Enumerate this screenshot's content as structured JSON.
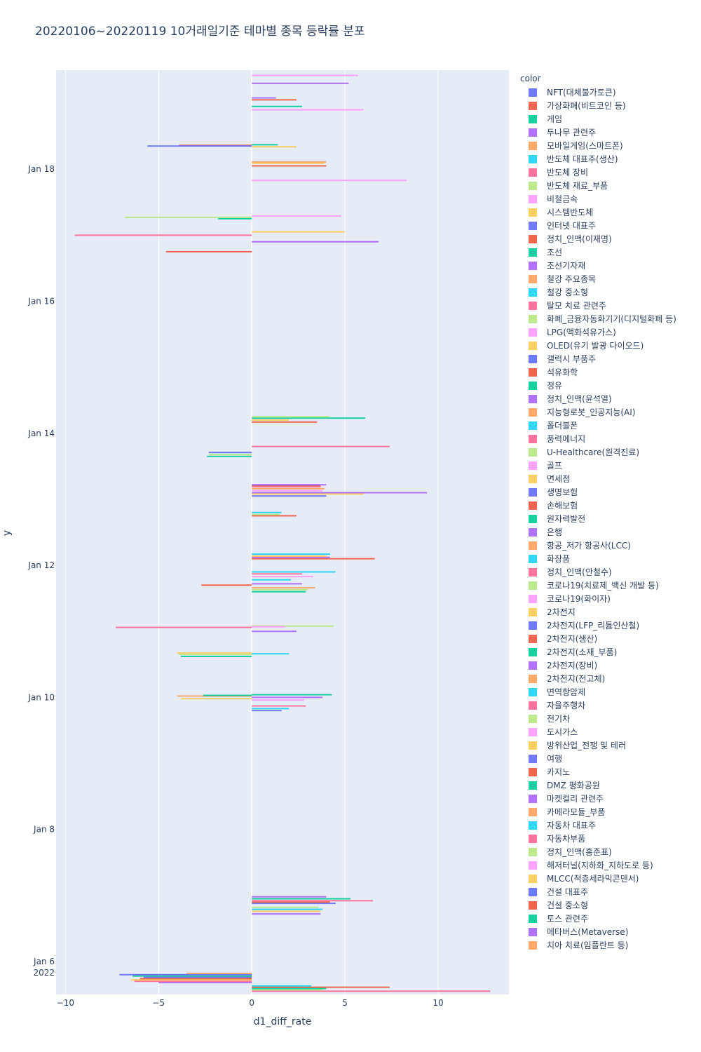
{
  "chart_data": {
    "type": "bar",
    "orientation": "horizontal",
    "title": "20220106~20220119 10거래일기준 테마별 종목 등락률 분포",
    "xlabel": "d1_diff_rate",
    "ylabel": "y",
    "xlim": [
      -10.5,
      13.8
    ],
    "x_ticks": [
      -10,
      -5,
      0,
      5,
      10
    ],
    "x_tick_labels": [
      "−10",
      "−5",
      "0",
      "5",
      "10"
    ],
    "y_ticks": [
      {
        "day": 6,
        "label": "Jan 6",
        "sublabel": "2022"
      },
      {
        "day": 8,
        "label": "Jan 8"
      },
      {
        "day": 10,
        "label": "Jan 10"
      },
      {
        "day": 12,
        "label": "Jan 12"
      },
      {
        "day": 14,
        "label": "Jan 14"
      },
      {
        "day": 16,
        "label": "Jan 16"
      },
      {
        "day": 18,
        "label": "Jan 18"
      }
    ],
    "ylim_days": [
      5.5,
      19.5
    ],
    "legend_title": "color",
    "themes": [
      {
        "name": "NFT(대체불가토큰)",
        "color": "#636efa"
      },
      {
        "name": "가상화폐(비트코인 등)",
        "color": "#EF553B"
      },
      {
        "name": "게임",
        "color": "#00cc96"
      },
      {
        "name": "두나무 관련주",
        "color": "#ab63fa"
      },
      {
        "name": "모바일게임(스마트폰)",
        "color": "#FFA15A"
      },
      {
        "name": "반도체 대표주(생산)",
        "color": "#19d3f3"
      },
      {
        "name": "반도체 장비",
        "color": "#FF6692"
      },
      {
        "name": "반도체 재료_부품",
        "color": "#B6E880"
      },
      {
        "name": "비철금속",
        "color": "#FF97FF"
      },
      {
        "name": "시스템반도체",
        "color": "#FECB52"
      },
      {
        "name": "인터넷 대표주",
        "color": "#636efa"
      },
      {
        "name": "정치_인맥(이재명)",
        "color": "#EF553B"
      },
      {
        "name": "조선",
        "color": "#00cc96"
      },
      {
        "name": "조선기자재",
        "color": "#ab63fa"
      },
      {
        "name": "철강 주요종목",
        "color": "#FFA15A"
      },
      {
        "name": "철강 중소형",
        "color": "#19d3f3"
      },
      {
        "name": "탈모 치료 관련주",
        "color": "#FF6692"
      },
      {
        "name": "화폐_금융자동화기기(디지털화폐 등)",
        "color": "#B6E880"
      },
      {
        "name": "LPG(액화석유가스)",
        "color": "#FF97FF"
      },
      {
        "name": "OLED(유기 발광 다이오드)",
        "color": "#FECB52"
      },
      {
        "name": "갤럭시 부품주",
        "color": "#636efa"
      },
      {
        "name": "석유화학",
        "color": "#EF553B"
      },
      {
        "name": "정유",
        "color": "#00cc96"
      },
      {
        "name": "정치_인맥(윤석열)",
        "color": "#ab63fa"
      },
      {
        "name": "지능형로봇_인공지능(AI)",
        "color": "#FFA15A"
      },
      {
        "name": "폴더블폰",
        "color": "#19d3f3"
      },
      {
        "name": "풍력에너지",
        "color": "#FF6692"
      },
      {
        "name": "U-Healthcare(원격진료)",
        "color": "#B6E880"
      },
      {
        "name": "골프",
        "color": "#FF97FF"
      },
      {
        "name": "면세점",
        "color": "#FECB52"
      },
      {
        "name": "생명보험",
        "color": "#636efa"
      },
      {
        "name": "손해보험",
        "color": "#EF553B"
      },
      {
        "name": "원자력발전",
        "color": "#00cc96"
      },
      {
        "name": "은행",
        "color": "#ab63fa"
      },
      {
        "name": "항공_저가 항공사(LCC)",
        "color": "#FFA15A"
      },
      {
        "name": "화장품",
        "color": "#19d3f3"
      },
      {
        "name": "정치_인맥(안철수)",
        "color": "#FF6692"
      },
      {
        "name": "코로나19(치료제_백신 개발 등)",
        "color": "#B6E880"
      },
      {
        "name": "코로나19(화이자)",
        "color": "#FF97FF"
      },
      {
        "name": "2차전지",
        "color": "#FECB52"
      },
      {
        "name": "2차전지(LFP_리튬인산철)",
        "color": "#636efa"
      },
      {
        "name": "2차전지(생산)",
        "color": "#EF553B"
      },
      {
        "name": "2차전지(소재_부품)",
        "color": "#00cc96"
      },
      {
        "name": "2차전지(장비)",
        "color": "#ab63fa"
      },
      {
        "name": "2차전지(전고체)",
        "color": "#FFA15A"
      },
      {
        "name": "면역항암제",
        "color": "#19d3f3"
      },
      {
        "name": "자율주행차",
        "color": "#FF6692"
      },
      {
        "name": "전기차",
        "color": "#B6E880"
      },
      {
        "name": "도시가스",
        "color": "#FF97FF"
      },
      {
        "name": "방위산업_전쟁 및 테러",
        "color": "#FECB52"
      },
      {
        "name": "여행",
        "color": "#636efa"
      },
      {
        "name": "카지노",
        "color": "#EF553B"
      },
      {
        "name": "DMZ 평화공원",
        "color": "#00cc96"
      },
      {
        "name": "마켓컬리 관련주",
        "color": "#ab63fa"
      },
      {
        "name": "카메라모듈_부품",
        "color": "#FFA15A"
      },
      {
        "name": "자동차 대표주",
        "color": "#19d3f3"
      },
      {
        "name": "자동차부품",
        "color": "#FF6692"
      },
      {
        "name": "정치_인맥(홍준표)",
        "color": "#B6E880"
      },
      {
        "name": "해저터널(지하화_지하도로 등)",
        "color": "#FF97FF"
      },
      {
        "name": "MLCC(적층세라믹콘덴서)",
        "color": "#FECB52"
      },
      {
        "name": "건설 대표주",
        "color": "#636efa"
      },
      {
        "name": "건설 중소형",
        "color": "#EF553B"
      },
      {
        "name": "토스 관련주",
        "color": "#00cc96"
      },
      {
        "name": "메타버스(Metaverse)",
        "color": "#ab63fa"
      },
      {
        "name": "치아 치료(임플란트 등)",
        "color": "#FFA15A"
      }
    ],
    "bars": [
      {
        "day": 5.68,
        "value": -5.0,
        "color": "#ab63fa"
      },
      {
        "day": 5.7,
        "value": -6.3,
        "color": "#FF6692"
      },
      {
        "day": 5.72,
        "value": -6.5,
        "color": "#FECB52"
      },
      {
        "day": 5.74,
        "value": -6.0,
        "color": "#EF553B"
      },
      {
        "day": 5.76,
        "value": -5.8,
        "color": "#636efa"
      },
      {
        "day": 5.78,
        "value": -6.4,
        "color": "#00cc96"
      },
      {
        "day": 5.8,
        "value": -7.1,
        "color": "#636efa"
      },
      {
        "day": 5.82,
        "value": -3.5,
        "color": "#FFA15A"
      },
      {
        "day": 5.62,
        "value": 2.5,
        "color": "#FF97FF"
      },
      {
        "day": 5.55,
        "value": 12.8,
        "color": "#FF6692"
      },
      {
        "day": 5.57,
        "value": 3.8,
        "color": "#B6E880"
      },
      {
        "day": 5.59,
        "value": 4.0,
        "color": "#00cc96"
      },
      {
        "day": 5.61,
        "value": 7.4,
        "color": "#EF553B"
      },
      {
        "day": 5.63,
        "value": 3.2,
        "color": "#19d3f3"
      },
      {
        "day": 6.72,
        "value": 3.7,
        "color": "#ab63fa"
      },
      {
        "day": 6.76,
        "value": 3.7,
        "color": "#FECB52"
      },
      {
        "day": 6.79,
        "value": 3.8,
        "color": "#19d3f3"
      },
      {
        "day": 6.82,
        "value": 3.6,
        "color": "#B6E880"
      },
      {
        "day": 6.88,
        "value": 4.5,
        "color": "#636efa"
      },
      {
        "day": 6.9,
        "value": 4.2,
        "color": "#EF553B"
      },
      {
        "day": 6.92,
        "value": 6.5,
        "color": "#FF6692"
      },
      {
        "day": 6.95,
        "value": 5.3,
        "color": "#00cc96"
      },
      {
        "day": 6.98,
        "value": 4.0,
        "color": "#ab63fa"
      },
      {
        "day": 9.8,
        "value": 1.6,
        "color": "#636efa"
      },
      {
        "day": 9.83,
        "value": 2.0,
        "color": "#19d3f3"
      },
      {
        "day": 9.87,
        "value": 2.9,
        "color": "#FF6692"
      },
      {
        "day": 9.96,
        "value": 2.8,
        "color": "#FF97FF"
      },
      {
        "day": 9.98,
        "value": -3.8,
        "color": "#FECB52"
      },
      {
        "day": 10.0,
        "value": 3.8,
        "color": "#ab63fa"
      },
      {
        "day": 10.02,
        "value": -4.0,
        "color": "#FFA15A"
      },
      {
        "day": 10.04,
        "value": 4.3,
        "color": "#00cc96"
      },
      {
        "day": 10.03,
        "value": -2.6,
        "color": "#00cc96"
      },
      {
        "day": 10.62,
        "value": -3.8,
        "color": "#00cc96"
      },
      {
        "day": 10.65,
        "value": -3.9,
        "color": "#B6E880"
      },
      {
        "day": 10.67,
        "value": -4.0,
        "color": "#FECB52"
      },
      {
        "day": 10.66,
        "value": 2.0,
        "color": "#19d3f3"
      },
      {
        "day": 11.0,
        "value": 2.4,
        "color": "#ab63fa"
      },
      {
        "day": 11.06,
        "value": -7.3,
        "color": "#FF6692"
      },
      {
        "day": 11.08,
        "value": 4.4,
        "color": "#B6E880"
      },
      {
        "day": 11.07,
        "value": 1.8,
        "color": "#FF97FF"
      },
      {
        "day": 11.6,
        "value": 2.9,
        "color": "#00cc96"
      },
      {
        "day": 11.63,
        "value": 3.0,
        "color": "#B6E880"
      },
      {
        "day": 11.66,
        "value": 3.4,
        "color": "#FFA15A"
      },
      {
        "day": 11.7,
        "value": -2.7,
        "color": "#EF553B"
      },
      {
        "day": 11.72,
        "value": 2.7,
        "color": "#ab63fa"
      },
      {
        "day": 11.78,
        "value": 2.1,
        "color": "#19d3f3"
      },
      {
        "day": 11.83,
        "value": 3.3,
        "color": "#FF97FF"
      },
      {
        "day": 11.87,
        "value": 2.7,
        "color": "#FF6692"
      },
      {
        "day": 11.9,
        "value": 4.5,
        "color": "#19d3f3"
      },
      {
        "day": 12.1,
        "value": 6.6,
        "color": "#EF553B"
      },
      {
        "day": 12.12,
        "value": 4.2,
        "color": "#ab63fa"
      },
      {
        "day": 12.14,
        "value": 4.0,
        "color": "#FECB52"
      },
      {
        "day": 12.17,
        "value": 4.2,
        "color": "#19d3f3"
      },
      {
        "day": 12.75,
        "value": 2.4,
        "color": "#EF553B"
      },
      {
        "day": 12.77,
        "value": 1.5,
        "color": "#B6E880"
      },
      {
        "day": 12.8,
        "value": 1.6,
        "color": "#19d3f3"
      },
      {
        "day": 13.05,
        "value": 4.0,
        "color": "#636efa"
      },
      {
        "day": 13.08,
        "value": 6.0,
        "color": "#FECB52"
      },
      {
        "day": 13.1,
        "value": 9.4,
        "color": "#ab63fa"
      },
      {
        "day": 13.13,
        "value": 3.8,
        "color": "#FF97FF"
      },
      {
        "day": 13.16,
        "value": 3.9,
        "color": "#FFA15A"
      },
      {
        "day": 13.19,
        "value": 3.7,
        "color": "#FF6692"
      },
      {
        "day": 13.21,
        "value": 3.7,
        "color": "#EF553B"
      },
      {
        "day": 13.22,
        "value": 4.0,
        "color": "#ab63fa"
      },
      {
        "day": 13.65,
        "value": -2.4,
        "color": "#00cc96"
      },
      {
        "day": 13.68,
        "value": -2.3,
        "color": "#B6E880"
      },
      {
        "day": 13.71,
        "value": -2.3,
        "color": "#636efa"
      },
      {
        "day": 13.8,
        "value": 7.4,
        "color": "#FF6692"
      },
      {
        "day": 14.17,
        "value": 3.5,
        "color": "#EF553B"
      },
      {
        "day": 14.2,
        "value": 2.0,
        "color": "#FECB52"
      },
      {
        "day": 14.23,
        "value": 6.1,
        "color": "#00cc96"
      },
      {
        "day": 14.25,
        "value": 4.2,
        "color": "#B6E880"
      },
      {
        "day": 16.75,
        "value": -4.6,
        "color": "#EF553B"
      },
      {
        "day": 16.9,
        "value": 6.8,
        "color": "#ab63fa"
      },
      {
        "day": 17.05,
        "value": 5.0,
        "color": "#FECB52"
      },
      {
        "day": 17.0,
        "value": -9.5,
        "color": "#FF6692"
      },
      {
        "day": 17.25,
        "value": -1.8,
        "color": "#00cc96"
      },
      {
        "day": 17.27,
        "value": -6.8,
        "color": "#B6E880"
      },
      {
        "day": 17.29,
        "value": 4.8,
        "color": "#FF97FF"
      },
      {
        "day": 17.83,
        "value": 8.3,
        "color": "#FF97FF"
      },
      {
        "day": 18.05,
        "value": 4.0,
        "color": "#EF553B"
      },
      {
        "day": 18.09,
        "value": 3.9,
        "color": "#FECB52"
      },
      {
        "day": 18.11,
        "value": 4.0,
        "color": "#FFA15A"
      },
      {
        "day": 18.34,
        "value": 2.4,
        "color": "#FECB52"
      },
      {
        "day": 18.36,
        "value": -3.9,
        "color": "#EF553B"
      },
      {
        "day": 18.37,
        "value": 1.4,
        "color": "#00cc96"
      },
      {
        "day": 18.35,
        "value": -5.6,
        "color": "#636efa"
      },
      {
        "day": 18.9,
        "value": 6.0,
        "color": "#FF97FF"
      },
      {
        "day": 18.95,
        "value": 2.7,
        "color": "#00cc96"
      },
      {
        "day": 19.05,
        "value": 2.4,
        "color": "#EF553B"
      },
      {
        "day": 19.08,
        "value": 1.3,
        "color": "#ab63fa"
      },
      {
        "day": 19.3,
        "value": 5.2,
        "color": "#ab63fa"
      },
      {
        "day": 19.42,
        "value": 5.7,
        "color": "#FF97FF"
      }
    ]
  }
}
